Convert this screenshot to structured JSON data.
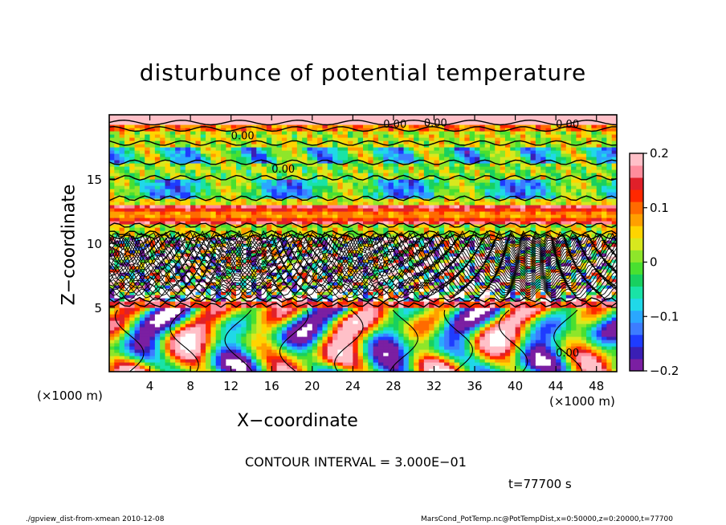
{
  "chart_data": {
    "type": "heatmap",
    "title": "disturbunce of potential temperature",
    "xlabel": "X−coordinate",
    "ylabel": "Z−coordinate",
    "x_unit": "(×1000 m)",
    "y_unit": "(×1000 m)",
    "xlim": [
      0,
      50
    ],
    "ylim": [
      0,
      20
    ],
    "x_ticks": [
      4,
      8,
      12,
      16,
      20,
      24,
      28,
      32,
      36,
      40,
      44,
      48
    ],
    "y_ticks": [
      5,
      10,
      15
    ],
    "colorbar": {
      "vmin": -0.2,
      "vmax": 0.2,
      "ticks": [
        0.2,
        0.1,
        0,
        -0.1,
        -0.2
      ],
      "tick_labels": [
        "0.2",
        "0.1",
        "0",
        "−0.1",
        "−0.2"
      ],
      "colors": [
        "#7b1fa2",
        "#3a1fb5",
        "#1e3cff",
        "#3d7cff",
        "#2aa7ff",
        "#20d8e8",
        "#19e3a6",
        "#18d060",
        "#49e030",
        "#8ee62a",
        "#d8e81e",
        "#ffd400",
        "#ff9f00",
        "#ff6a00",
        "#ff2800",
        "#e0202a",
        "#ff8c9c",
        "#ffc0c8"
      ]
    },
    "contour_interval_text": "CONTOUR INTERVAL = 3.000E−01",
    "contour_labels": [
      "0.00",
      "0.00",
      "0.00",
      "0.00",
      "0.00",
      "0.00"
    ],
    "time_text": "t=77700  s"
  },
  "footer": {
    "left": "./gpview_dist-from-xmean   2010-12-08",
    "right": "MarsCond_PotTemp.nc@PotTempDist,x=0:50000,z=0:20000,t=77700"
  }
}
